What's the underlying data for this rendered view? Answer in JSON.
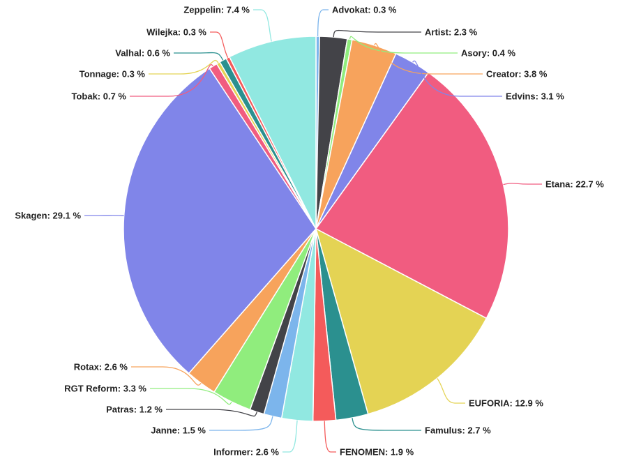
{
  "chart_data": {
    "type": "pie",
    "start_angle_deg": 0,
    "direction": "clockwise",
    "unit": "%",
    "slices": [
      {
        "label": "Advokat",
        "value": 0.3,
        "text": "Advokat: 0.3 %",
        "color": "#7cb5ec"
      },
      {
        "label": "Artist",
        "value": 2.3,
        "text": "Artist: 2.3 %",
        "color": "#434348"
      },
      {
        "label": "Asory",
        "value": 0.4,
        "text": "Asory: 0.4 %",
        "color": "#90ed7d"
      },
      {
        "label": "Creator",
        "value": 3.8,
        "text": "Creator: 3.8 %",
        "color": "#f7a35c"
      },
      {
        "label": "Edvins",
        "value": 3.1,
        "text": "Edvins: 3.1 %",
        "color": "#8085e9"
      },
      {
        "label": "Etana",
        "value": 22.7,
        "text": "Etana: 22.7 %",
        "color": "#f15c80"
      },
      {
        "label": "EUFORIA",
        "value": 12.9,
        "text": "EUFORIA: 12.9 %",
        "color": "#e4d354"
      },
      {
        "label": "Famulus",
        "value": 2.7,
        "text": "Famulus: 2.7 %",
        "color": "#2b908f"
      },
      {
        "label": "FENOMEN",
        "value": 1.9,
        "text": "FENOMEN: 1.9 %",
        "color": "#f45b5b"
      },
      {
        "label": "Informer",
        "value": 2.6,
        "text": "Informer: 2.6 %",
        "color": "#91e8e1"
      },
      {
        "label": "Janne",
        "value": 1.5,
        "text": "Janne: 1.5 %",
        "color": "#7cb5ec"
      },
      {
        "label": "Patras",
        "value": 1.2,
        "text": "Patras: 1.2 %",
        "color": "#434348"
      },
      {
        "label": "RGT Reform",
        "value": 3.3,
        "text": "RGT Reform: 3.3 %",
        "color": "#90ed7d"
      },
      {
        "label": "Rotax",
        "value": 2.6,
        "text": "Rotax: 2.6 %",
        "color": "#f7a35c"
      },
      {
        "label": "Skagen",
        "value": 29.1,
        "text": "Skagen: 29.1 %",
        "color": "#8085e9"
      },
      {
        "label": "Tobak",
        "value": 0.7,
        "text": "Tobak: 0.7 %",
        "color": "#f15c80"
      },
      {
        "label": "Tonnage",
        "value": 0.3,
        "text": "Tonnage: 0.3 %",
        "color": "#e4d354"
      },
      {
        "label": "Valhal",
        "value": 0.6,
        "text": "Valhal: 0.6 %",
        "color": "#2b908f"
      },
      {
        "label": "Wilejka",
        "value": 0.3,
        "text": "Wilejka: 0.3 %",
        "color": "#f45b5b"
      },
      {
        "label": "Zeppelin",
        "value": 7.4,
        "text": "Zeppelin: 7.4 %",
        "color": "#91e8e1"
      }
    ]
  }
}
